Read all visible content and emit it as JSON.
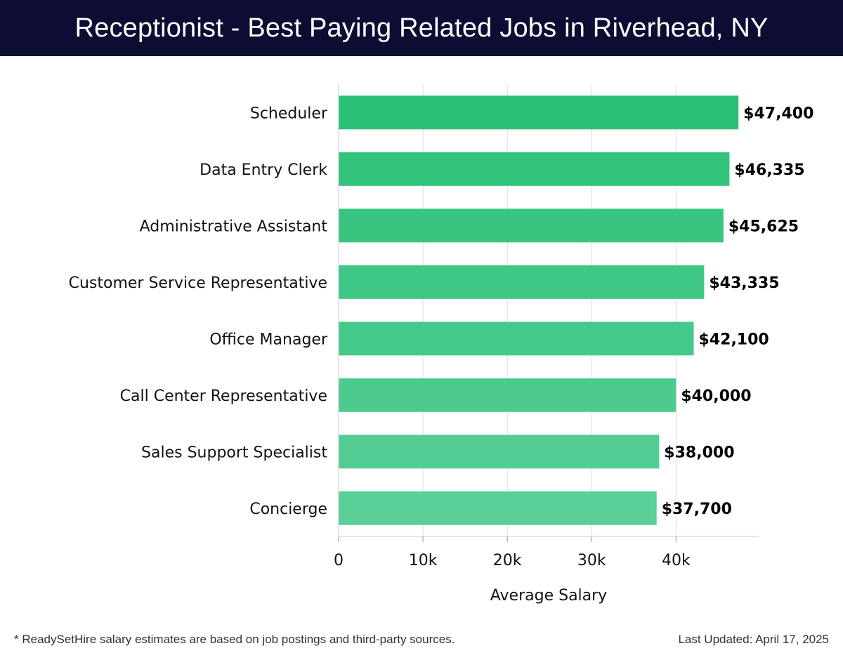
{
  "header": {
    "title": "Receptionist - Best Paying Related Jobs in Riverhead, NY"
  },
  "footer": {
    "note": "* ReadySetHire salary estimates are based on job postings and third-party sources.",
    "updated": "Last Updated: April 17, 2025"
  },
  "colors": {
    "header_bg": "#0d0d33",
    "bar_top": "#2ac177",
    "bar_bottom": "#5acf98",
    "grid": "#dddddd"
  },
  "chart_data": {
    "type": "bar",
    "orientation": "horizontal",
    "categories": [
      "Scheduler",
      "Data Entry Clerk",
      "Administrative Assistant",
      "Customer Service Representative",
      "Office Manager",
      "Call Center Representative",
      "Sales Support Specialist",
      "Concierge"
    ],
    "values": [
      47400,
      46335,
      45625,
      43335,
      42100,
      40000,
      38000,
      37700
    ],
    "value_labels": [
      "$47,400",
      "$46,335",
      "$45,625",
      "$43,335",
      "$42,100",
      "$40,000",
      "$38,000",
      "$37,700"
    ],
    "xlabel": "Average Salary",
    "ylabel": "",
    "xlim": [
      0,
      49800
    ],
    "xticks": [
      0,
      10000,
      20000,
      30000,
      40000
    ],
    "xtick_labels": [
      "0",
      "10k",
      "20k",
      "30k",
      "40k"
    ],
    "grid": true
  }
}
